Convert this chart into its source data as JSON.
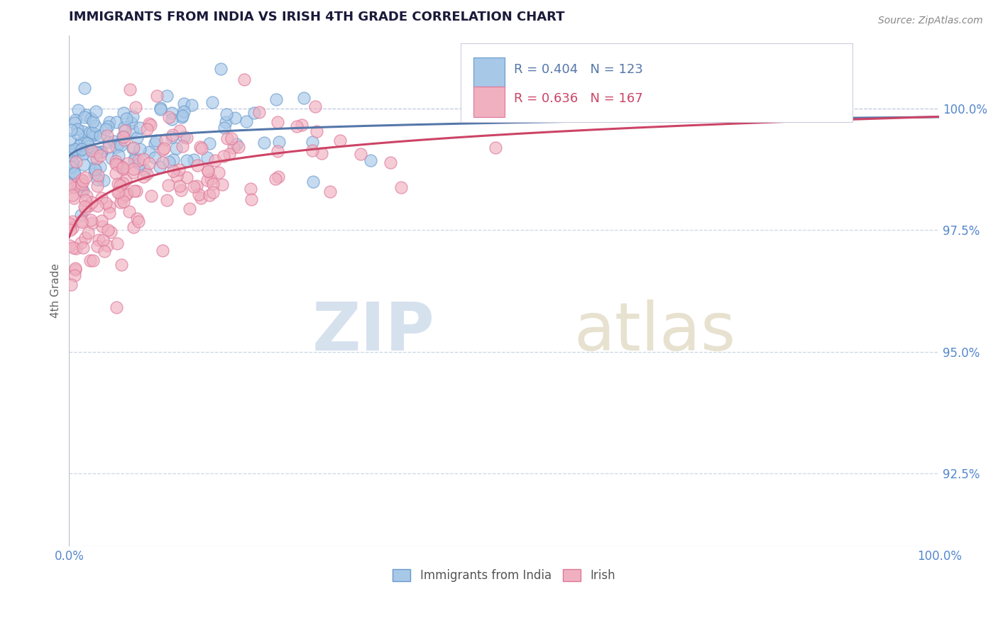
{
  "title": "IMMIGRANTS FROM INDIA VS IRISH 4TH GRADE CORRELATION CHART",
  "source": "Source: ZipAtlas.com",
  "ylabel": "4th Grade",
  "xlim": [
    0,
    100
  ],
  "ylim": [
    91.0,
    101.5
  ],
  "yticks": [
    92.5,
    95.0,
    97.5,
    100.0
  ],
  "xticks": [
    0,
    100
  ],
  "xtick_labels": [
    "0.0%",
    "100.0%"
  ],
  "ytick_labels": [
    "92.5%",
    "95.0%",
    "97.5%",
    "100.0%"
  ],
  "blue_color": "#a8c8e8",
  "pink_color": "#f0b0c0",
  "blue_edge_color": "#6699cc",
  "pink_edge_color": "#dd7799",
  "blue_line_color": "#5577aa",
  "pink_line_color": "#cc4466",
  "legend_r_blue": "R = 0.404",
  "legend_n_blue": "N = 123",
  "legend_r_pink": "R = 0.636",
  "legend_n_pink": "N = 167",
  "n_blue": 123,
  "n_pink": 167,
  "title_color": "#1a1a3a",
  "tick_color": "#5588cc",
  "grid_color": "#c0cce0",
  "background_color": "#ffffff"
}
